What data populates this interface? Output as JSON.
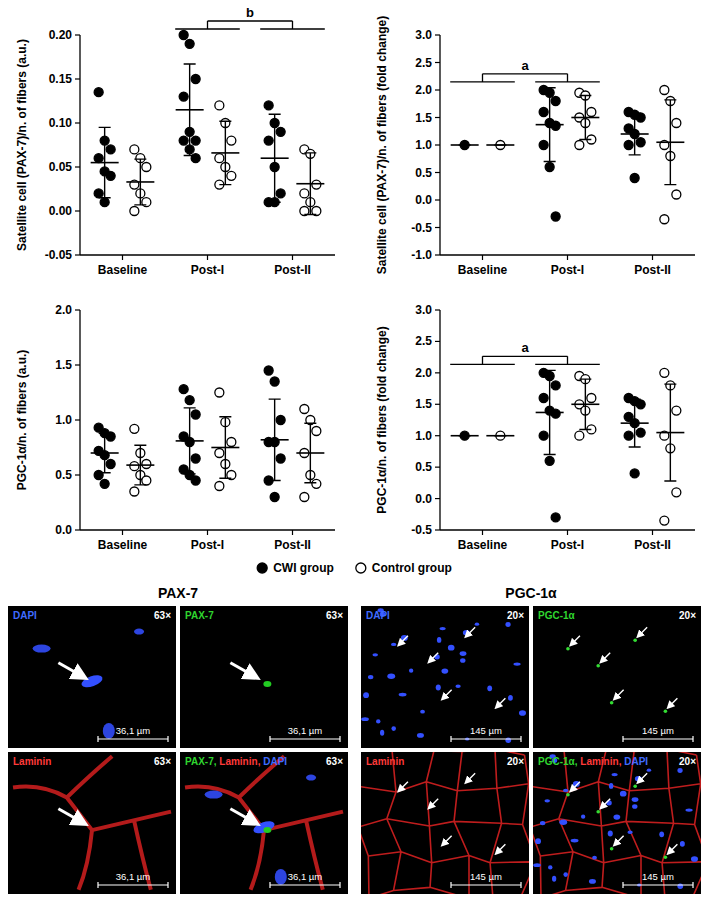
{
  "chart_data": [
    {
      "type": "scatter",
      "y_label": "Satellite cell (PAX-7)/n. of fibers (a.u.)",
      "categories": [
        "Baseline",
        "Post-I",
        "Post-II"
      ],
      "ylim": [
        -0.05,
        0.2
      ],
      "yticks": [
        {
          "value": -0.05,
          "label": "-0.05"
        },
        {
          "value": 0,
          "label": "0.00"
        },
        {
          "value": 0.05,
          "label": "0.05"
        },
        {
          "value": 0.1,
          "label": "0.10"
        },
        {
          "value": 0.15,
          "label": "0.15"
        },
        {
          "value": 0.2,
          "label": "0.20"
        }
      ],
      "legend": "bottom",
      "series": [
        {
          "name": "CWI group",
          "color": "#000000",
          "marker": "filled",
          "values": [
            [
              0.135,
              0.08,
              0.07,
              0.06,
              0.045,
              0.04,
              0.02,
              0.01
            ],
            [
              0.2,
              0.19,
              0.15,
              0.13,
              0.09,
              0.08,
              0.08,
              0.07,
              0.06
            ],
            [
              0.12,
              0.1,
              0.09,
              0.08,
              0.05,
              0.02,
              0.01,
              0.01
            ]
          ],
          "mean": [
            0.055,
            0.115,
            0.06
          ],
          "sd": [
            0.04,
            0.052,
            0.05
          ]
        },
        {
          "name": "Control group",
          "color": "#000000",
          "marker": "open",
          "values": [
            [
              0.07,
              0.06,
              0.05,
              0.03,
              0.02,
              0.01,
              0.0
            ],
            [
              0.12,
              0.1,
              0.08,
              0.06,
              0.05,
              0.04,
              0.03
            ],
            [
              0.07,
              0.065,
              0.03,
              0.02,
              0.01,
              0.0,
              0.0
            ]
          ],
          "mean": [
            0.033,
            0.066,
            0.031
          ],
          "sd": [
            0.026,
            0.036,
            0.035
          ]
        }
      ],
      "annotations": [
        {
          "text": "b",
          "categories": [
            1,
            2
          ]
        }
      ]
    },
    {
      "type": "scatter",
      "y_label": "Satellite cell (PAX-7)/n. of fibers (fold change)",
      "categories": [
        "Baseline",
        "Post-I",
        "Post-II"
      ],
      "ylim": [
        -1.0,
        3.0
      ],
      "yticks": [
        {
          "value": -1,
          "label": "-1.0"
        },
        {
          "value": -0.5,
          "label": "-0.5"
        },
        {
          "value": 0,
          "label": "0.0"
        },
        {
          "value": 0.5,
          "label": "0.5"
        },
        {
          "value": 1,
          "label": "1.0"
        },
        {
          "value": 1.5,
          "label": "1.5"
        },
        {
          "value": 2,
          "label": "2.0"
        },
        {
          "value": 2.5,
          "label": "2.5"
        },
        {
          "value": 3,
          "label": "3.0"
        }
      ],
      "series": [
        {
          "name": "CWI group",
          "color": "#000000",
          "marker": "filled",
          "values": [
            [
              1.0
            ],
            [
              2.0,
              1.95,
              1.8,
              1.6,
              1.4,
              1.35,
              1.0,
              0.6,
              -0.3
            ],
            [
              1.6,
              1.55,
              1.5,
              1.3,
              1.2,
              1.05,
              1.0,
              0.4
            ]
          ],
          "mean": [
            1.0,
            1.37,
            1.2
          ],
          "sd": [
            0,
            0.67,
            0.38
          ]
        },
        {
          "name": "Control group",
          "color": "#000000",
          "marker": "open",
          "values": [
            [
              1.0
            ],
            [
              1.95,
              1.9,
              1.6,
              1.5,
              1.4,
              1.1,
              1.0
            ],
            [
              2.0,
              1.8,
              1.4,
              1.0,
              0.8,
              0.1,
              -0.35
            ]
          ],
          "mean": [
            1.0,
            1.5,
            1.05
          ],
          "sd": [
            0,
            0.4,
            0.77
          ]
        }
      ],
      "annotations": [
        {
          "text": "a",
          "categories": [
            0,
            1
          ]
        }
      ]
    },
    {
      "type": "scatter",
      "y_label": "PGC-1α/n. of fibers (a.u.)",
      "categories": [
        "Baseline",
        "Post-I",
        "Post-II"
      ],
      "ylim": [
        0,
        2.0
      ],
      "yticks": [
        {
          "value": 0,
          "label": "0.0"
        },
        {
          "value": 0.5,
          "label": "0.5"
        },
        {
          "value": 1,
          "label": "1.0"
        },
        {
          "value": 1.5,
          "label": "1.5"
        },
        {
          "value": 2,
          "label": "2.0"
        }
      ],
      "series": [
        {
          "name": "CWI group",
          "color": "#000000",
          "marker": "filled",
          "values": [
            [
              0.93,
              0.88,
              0.85,
              0.72,
              0.68,
              0.6,
              0.5,
              0.42
            ],
            [
              1.28,
              1.18,
              1.05,
              0.85,
              0.8,
              0.65,
              0.55,
              0.5,
              0.45
            ],
            [
              1.45,
              1.35,
              1.0,
              0.8,
              0.8,
              0.65,
              0.45,
              0.3
            ]
          ],
          "mean": [
            0.7,
            0.81,
            0.82
          ],
          "sd": [
            0.18,
            0.3,
            0.37
          ]
        },
        {
          "name": "Control group",
          "color": "#000000",
          "marker": "open",
          "values": [
            [
              0.92,
              0.7,
              0.6,
              0.58,
              0.5,
              0.45,
              0.35
            ],
            [
              1.25,
              0.98,
              0.8,
              0.7,
              0.6,
              0.5,
              0.4
            ],
            [
              1.1,
              1.0,
              0.9,
              0.7,
              0.5,
              0.42,
              0.3
            ]
          ],
          "mean": [
            0.59,
            0.75,
            0.7
          ],
          "sd": [
            0.18,
            0.28,
            0.27
          ]
        }
      ]
    },
    {
      "type": "scatter",
      "y_label": "PGC-1α/n. of fibers (fold change)",
      "categories": [
        "Baseline",
        "Post-I",
        "Post-II"
      ],
      "ylim": [
        -0.5,
        3.0
      ],
      "yticks": [
        {
          "value": -0.5,
          "label": "-0.5"
        },
        {
          "value": 0,
          "label": "0.0"
        },
        {
          "value": 0.5,
          "label": "0.5"
        },
        {
          "value": 1,
          "label": "1.0"
        },
        {
          "value": 1.5,
          "label": "1.5"
        },
        {
          "value": 2,
          "label": "2.0"
        },
        {
          "value": 2.5,
          "label": "2.5"
        },
        {
          "value": 3,
          "label": "3.0"
        }
      ],
      "series": [
        {
          "name": "CWI group",
          "color": "#000000",
          "marker": "filled",
          "values": [
            [
              1.0
            ],
            [
              2.0,
              1.95,
              1.8,
              1.6,
              1.4,
              1.35,
              1.0,
              0.6,
              -0.3
            ],
            [
              1.6,
              1.55,
              1.5,
              1.3,
              1.2,
              1.05,
              1.0,
              0.4
            ]
          ],
          "mean": [
            1.0,
            1.37,
            1.2
          ],
          "sd": [
            0,
            0.67,
            0.38
          ]
        },
        {
          "name": "Control group",
          "color": "#000000",
          "marker": "open",
          "values": [
            [
              1.0
            ],
            [
              1.95,
              1.9,
              1.6,
              1.5,
              1.4,
              1.1,
              1.0
            ],
            [
              2.0,
              1.8,
              1.4,
              1.0,
              0.8,
              0.1,
              -0.35
            ]
          ],
          "mean": [
            1.0,
            1.5,
            1.05
          ],
          "sd": [
            0,
            0.4,
            0.77
          ]
        }
      ],
      "annotations": [
        {
          "text": "a",
          "categories": [
            0,
            1
          ]
        }
      ]
    }
  ],
  "micrographs": [
    {
      "title": "PAX-7",
      "magnification": "63×",
      "scale_bar": "36,1 µm",
      "panels": [
        {
          "label": "DAPI",
          "colors": [
            "#3f6bff"
          ]
        },
        {
          "label": "PAX-7",
          "colors": [
            "#2fd62f"
          ]
        },
        {
          "label": "Laminin",
          "colors": [
            "#ff3a3a"
          ]
        },
        {
          "label": "PAX-7, Laminin, DAPI",
          "colors": [
            "#2fd62f",
            "#ff3a3a",
            "#3f6bff"
          ]
        }
      ]
    },
    {
      "title": "PGC-1α",
      "magnification": "20×",
      "scale_bar": "145 µm",
      "panels": [
        {
          "label": "DAPI",
          "colors": [
            "#3f6bff"
          ]
        },
        {
          "label": "PGC-1α",
          "colors": [
            "#2fd62f"
          ]
        },
        {
          "label": "Laminin",
          "colors": [
            "#ff3a3a"
          ]
        },
        {
          "label": "PGC-1α, Laminin, DAPI",
          "colors": [
            "#2fd62f",
            "#ff3a3a",
            "#3f6bff"
          ]
        }
      ]
    }
  ]
}
